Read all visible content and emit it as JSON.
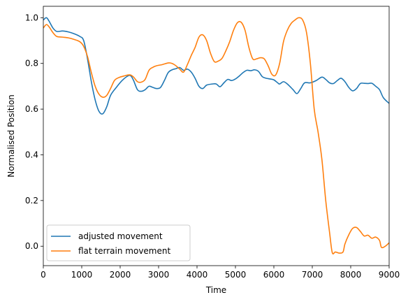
{
  "chart_data": {
    "type": "line",
    "xlabel": "Time",
    "ylabel": "Normalised Position",
    "xlim": [
      0,
      9000
    ],
    "ylim": [
      -0.085,
      1.05
    ],
    "xticks": [
      0,
      1000,
      2000,
      3000,
      4000,
      5000,
      6000,
      7000,
      8000,
      9000
    ],
    "yticks": [
      0.0,
      0.2,
      0.4,
      0.6,
      0.8,
      1.0
    ],
    "ytick_labels": [
      "0.0",
      "0.2",
      "0.4",
      "0.6",
      "0.8",
      "1.0"
    ],
    "grid": false,
    "legend_position": "lower-left",
    "series": [
      {
        "name": "adjusted movement",
        "color": "#1f77b4",
        "points": [
          [
            0,
            0.99
          ],
          [
            80,
            1.0
          ],
          [
            150,
            0.985
          ],
          [
            250,
            0.955
          ],
          [
            350,
            0.94
          ],
          [
            500,
            0.942
          ],
          [
            650,
            0.938
          ],
          [
            800,
            0.93
          ],
          [
            950,
            0.918
          ],
          [
            1050,
            0.9
          ],
          [
            1150,
            0.82
          ],
          [
            1250,
            0.72
          ],
          [
            1350,
            0.64
          ],
          [
            1450,
            0.59
          ],
          [
            1550,
            0.58
          ],
          [
            1650,
            0.61
          ],
          [
            1750,
            0.66
          ],
          [
            1900,
            0.695
          ],
          [
            2050,
            0.725
          ],
          [
            2200,
            0.745
          ],
          [
            2280,
            0.745
          ],
          [
            2350,
            0.725
          ],
          [
            2450,
            0.685
          ],
          [
            2550,
            0.678
          ],
          [
            2650,
            0.685
          ],
          [
            2750,
            0.7
          ],
          [
            2850,
            0.695
          ],
          [
            2950,
            0.69
          ],
          [
            3050,
            0.695
          ],
          [
            3150,
            0.725
          ],
          [
            3250,
            0.76
          ],
          [
            3350,
            0.772
          ],
          [
            3450,
            0.777
          ],
          [
            3550,
            0.782
          ],
          [
            3650,
            0.77
          ],
          [
            3750,
            0.775
          ],
          [
            3850,
            0.762
          ],
          [
            3950,
            0.735
          ],
          [
            4050,
            0.7
          ],
          [
            4150,
            0.69
          ],
          [
            4250,
            0.705
          ],
          [
            4400,
            0.71
          ],
          [
            4500,
            0.71
          ],
          [
            4600,
            0.698
          ],
          [
            4700,
            0.715
          ],
          [
            4800,
            0.73
          ],
          [
            4900,
            0.725
          ],
          [
            5000,
            0.732
          ],
          [
            5100,
            0.745
          ],
          [
            5200,
            0.76
          ],
          [
            5300,
            0.77
          ],
          [
            5400,
            0.768
          ],
          [
            5500,
            0.772
          ],
          [
            5600,
            0.765
          ],
          [
            5700,
            0.742
          ],
          [
            5800,
            0.735
          ],
          [
            5900,
            0.732
          ],
          [
            6000,
            0.728
          ],
          [
            6100,
            0.715
          ],
          [
            6150,
            0.71
          ],
          [
            6250,
            0.72
          ],
          [
            6350,
            0.71
          ],
          [
            6500,
            0.685
          ],
          [
            6600,
            0.668
          ],
          [
            6700,
            0.69
          ],
          [
            6800,
            0.715
          ],
          [
            6950,
            0.715
          ],
          [
            7100,
            0.725
          ],
          [
            7250,
            0.74
          ],
          [
            7350,
            0.73
          ],
          [
            7450,
            0.715
          ],
          [
            7550,
            0.712
          ],
          [
            7650,
            0.725
          ],
          [
            7750,
            0.735
          ],
          [
            7850,
            0.72
          ],
          [
            7950,
            0.695
          ],
          [
            8050,
            0.68
          ],
          [
            8150,
            0.69
          ],
          [
            8250,
            0.712
          ],
          [
            8350,
            0.713
          ],
          [
            8450,
            0.712
          ],
          [
            8550,
            0.713
          ],
          [
            8650,
            0.7
          ],
          [
            8750,
            0.685
          ],
          [
            8850,
            0.65
          ],
          [
            9000,
            0.625
          ]
        ]
      },
      {
        "name": "flat terrain movement",
        "color": "#ff7f0e",
        "points": [
          [
            0,
            0.955
          ],
          [
            80,
            0.97
          ],
          [
            150,
            0.96
          ],
          [
            250,
            0.935
          ],
          [
            350,
            0.918
          ],
          [
            500,
            0.915
          ],
          [
            650,
            0.912
          ],
          [
            800,
            0.905
          ],
          [
            950,
            0.895
          ],
          [
            1050,
            0.875
          ],
          [
            1150,
            0.83
          ],
          [
            1250,
            0.76
          ],
          [
            1350,
            0.7
          ],
          [
            1450,
            0.665
          ],
          [
            1550,
            0.652
          ],
          [
            1650,
            0.66
          ],
          [
            1750,
            0.69
          ],
          [
            1850,
            0.725
          ],
          [
            1950,
            0.737
          ],
          [
            2100,
            0.745
          ],
          [
            2250,
            0.75
          ],
          [
            2350,
            0.74
          ],
          [
            2450,
            0.72
          ],
          [
            2550,
            0.718
          ],
          [
            2650,
            0.73
          ],
          [
            2750,
            0.77
          ],
          [
            2850,
            0.783
          ],
          [
            2950,
            0.79
          ],
          [
            3100,
            0.795
          ],
          [
            3250,
            0.802
          ],
          [
            3350,
            0.8
          ],
          [
            3450,
            0.79
          ],
          [
            3550,
            0.775
          ],
          [
            3650,
            0.762
          ],
          [
            3750,
            0.795
          ],
          [
            3850,
            0.835
          ],
          [
            3950,
            0.87
          ],
          [
            4050,
            0.915
          ],
          [
            4150,
            0.925
          ],
          [
            4250,
            0.9
          ],
          [
            4350,
            0.845
          ],
          [
            4450,
            0.808
          ],
          [
            4550,
            0.81
          ],
          [
            4650,
            0.822
          ],
          [
            4750,
            0.855
          ],
          [
            4850,
            0.895
          ],
          [
            4950,
            0.945
          ],
          [
            5050,
            0.978
          ],
          [
            5150,
            0.98
          ],
          [
            5250,
            0.945
          ],
          [
            5350,
            0.87
          ],
          [
            5450,
            0.82
          ],
          [
            5550,
            0.82
          ],
          [
            5650,
            0.825
          ],
          [
            5750,
            0.82
          ],
          [
            5850,
            0.79
          ],
          [
            5950,
            0.752
          ],
          [
            6050,
            0.75
          ],
          [
            6150,
            0.8
          ],
          [
            6250,
            0.895
          ],
          [
            6350,
            0.945
          ],
          [
            6450,
            0.975
          ],
          [
            6550,
            0.99
          ],
          [
            6650,
            1.0
          ],
          [
            6750,
            0.99
          ],
          [
            6850,
            0.935
          ],
          [
            6950,
            0.8
          ],
          [
            7050,
            0.6
          ],
          [
            7150,
            0.5
          ],
          [
            7250,
            0.38
          ],
          [
            7350,
            0.2
          ],
          [
            7450,
            0.06
          ],
          [
            7520,
            -0.028
          ],
          [
            7600,
            -0.025
          ],
          [
            7700,
            -0.03
          ],
          [
            7800,
            -0.025
          ],
          [
            7850,
            0.01
          ],
          [
            7950,
            0.05
          ],
          [
            8050,
            0.078
          ],
          [
            8150,
            0.082
          ],
          [
            8250,
            0.065
          ],
          [
            8350,
            0.045
          ],
          [
            8450,
            0.048
          ],
          [
            8550,
            0.035
          ],
          [
            8650,
            0.04
          ],
          [
            8750,
            0.025
          ],
          [
            8800,
            -0.005
          ],
          [
            8900,
            0.0
          ],
          [
            9000,
            0.015
          ]
        ]
      }
    ]
  }
}
